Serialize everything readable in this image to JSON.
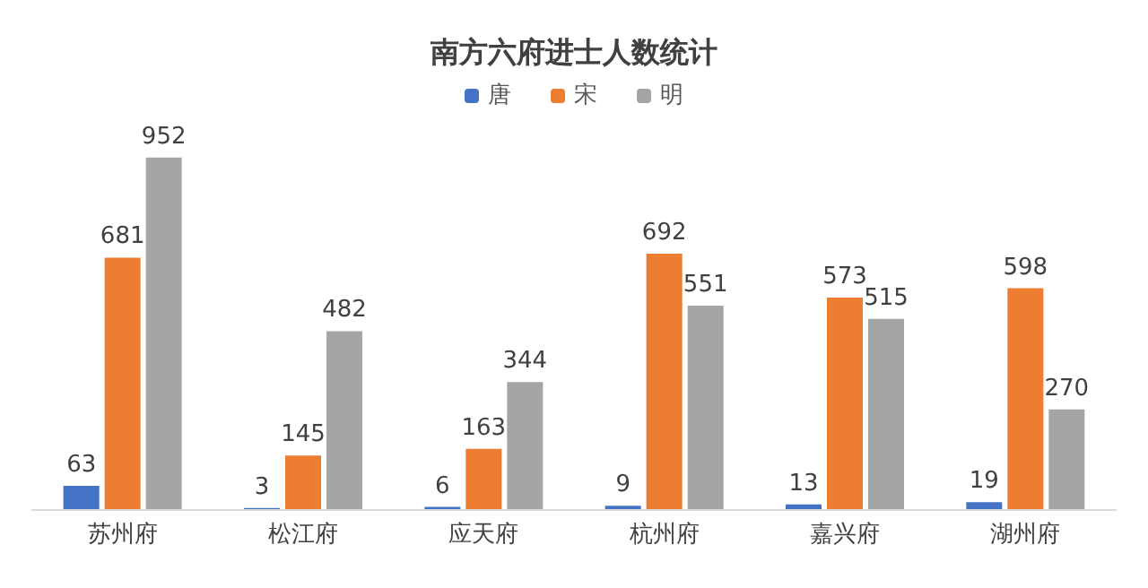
{
  "chart_data": {
    "type": "bar",
    "title": "南方六府进士人数统计",
    "categories": [
      "苏州府",
      "松江府",
      "应天府",
      "杭州府",
      "嘉兴府",
      "湖州府"
    ],
    "series": [
      {
        "name": "唐",
        "color": "#4472c4",
        "values": [
          63,
          3,
          6,
          9,
          13,
          19
        ]
      },
      {
        "name": "宋",
        "color": "#ed7d31",
        "values": [
          681,
          145,
          163,
          692,
          573,
          598
        ]
      },
      {
        "name": "明",
        "color": "#a5a5a5",
        "values": [
          952,
          482,
          344,
          551,
          515,
          270
        ]
      }
    ],
    "data_labels": true,
    "legend": "top"
  }
}
